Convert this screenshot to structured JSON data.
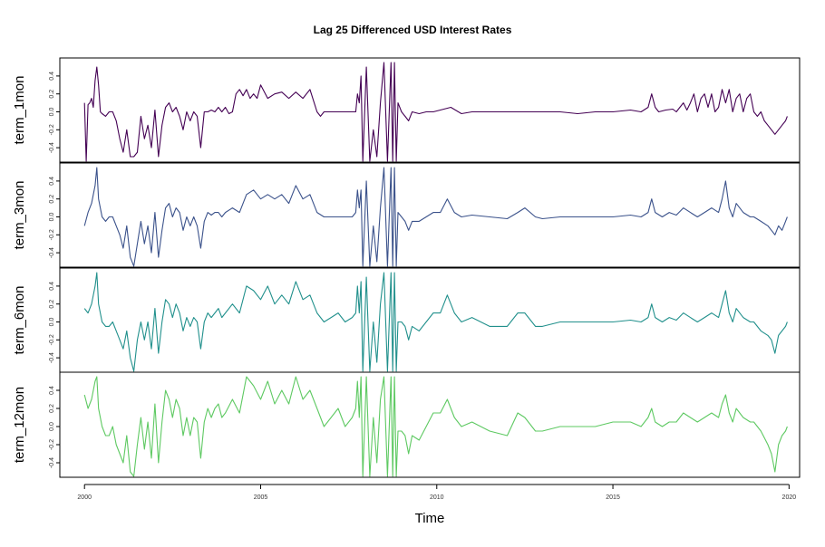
{
  "chart_data": {
    "type": "line",
    "title": "Lag 25 Differenced USD Interest Rates",
    "xlabel": "Time",
    "x_ticks": [
      "2000",
      "2005",
      "2010",
      "2015",
      "2020"
    ],
    "y_ticks": [
      "-0.4",
      "-0.2",
      "0.0",
      "0.2",
      "0.4"
    ],
    "xlim": [
      2000,
      2020
    ],
    "ylim": [
      -0.5,
      0.5
    ],
    "grid": false,
    "legend": "none",
    "series": [
      {
        "name": "term_1mon",
        "color": "#440154",
        "x": [
          2000.0,
          2000.05,
          2000.1,
          2000.15,
          2000.2,
          2000.25,
          2000.3,
          2000.35,
          2000.4,
          2000.45,
          2000.5,
          2000.6,
          2000.7,
          2000.8,
          2000.9,
          2001.0,
          2001.1,
          2001.2,
          2001.3,
          2001.4,
          2001.5,
          2001.6,
          2001.7,
          2001.8,
          2001.9,
          2002.0,
          2002.1,
          2002.2,
          2002.3,
          2002.4,
          2002.5,
          2002.6,
          2002.7,
          2002.8,
          2002.9,
          2003.0,
          2003.1,
          2003.2,
          2003.3,
          2003.4,
          2003.5,
          2003.6,
          2003.7,
          2003.8,
          2003.9,
          2004.0,
          2004.1,
          2004.2,
          2004.3,
          2004.4,
          2004.5,
          2004.6,
          2004.7,
          2004.8,
          2004.9,
          2005.0,
          2005.2,
          2005.4,
          2005.6,
          2005.8,
          2006.0,
          2006.2,
          2006.4,
          2006.6,
          2006.7,
          2006.8,
          2006.9,
          2007.0,
          2007.2,
          2007.4,
          2007.6,
          2007.7,
          2007.75,
          2007.8,
          2007.85,
          2007.9,
          2008.0,
          2008.1,
          2008.2,
          2008.3,
          2008.4,
          2008.5,
          2008.6,
          2008.7,
          2008.75,
          2008.8,
          2008.85,
          2008.9,
          2009.0,
          2009.1,
          2009.2,
          2009.3,
          2009.5,
          2009.7,
          2009.9,
          2010.1,
          2010.4,
          2010.7,
          2011.0,
          2011.5,
          2012.0,
          2012.5,
          2013.0,
          2013.5,
          2014.0,
          2014.5,
          2015.0,
          2015.5,
          2015.8,
          2016.0,
          2016.1,
          2016.2,
          2016.3,
          2016.5,
          2016.7,
          2016.8,
          2016.9,
          2017.0,
          2017.1,
          2017.2,
          2017.3,
          2017.4,
          2017.5,
          2017.6,
          2017.7,
          2017.8,
          2017.9,
          2018.0,
          2018.1,
          2018.2,
          2018.3,
          2018.4,
          2018.5,
          2018.6,
          2018.7,
          2018.8,
          2018.9,
          2019.0,
          2019.1,
          2019.2,
          2019.3,
          2019.4,
          2019.5,
          2019.6,
          2019.7,
          2019.8,
          2019.9,
          2019.95
        ],
        "values": [
          0.1,
          -0.55,
          0.08,
          0.1,
          0.15,
          0.05,
          0.35,
          0.5,
          0.3,
          0.0,
          -0.02,
          -0.05,
          0.0,
          0.0,
          -0.1,
          -0.3,
          -0.45,
          -0.2,
          -0.5,
          -0.5,
          -0.45,
          -0.05,
          -0.3,
          -0.15,
          -0.4,
          0.02,
          -0.5,
          -0.15,
          0.05,
          0.1,
          0.0,
          0.05,
          -0.05,
          -0.2,
          0.0,
          -0.1,
          0.0,
          -0.05,
          -0.4,
          0.0,
          0.0,
          0.02,
          0.0,
          0.05,
          0.0,
          0.05,
          -0.02,
          0.0,
          0.2,
          0.25,
          0.18,
          0.25,
          0.15,
          0.2,
          0.15,
          0.3,
          0.15,
          0.2,
          0.22,
          0.15,
          0.22,
          0.15,
          0.25,
          0.0,
          -0.05,
          0.0,
          0.0,
          0.0,
          0.0,
          0.0,
          0.0,
          0.0,
          0.2,
          0.1,
          0.4,
          -0.55,
          0.5,
          -0.55,
          -0.2,
          -0.5,
          0.1,
          0.55,
          -0.55,
          0.55,
          -0.55,
          0.55,
          -0.55,
          0.1,
          0.0,
          -0.05,
          -0.1,
          0.0,
          -0.02,
          0.0,
          0.0,
          0.02,
          0.05,
          -0.02,
          0.0,
          0.0,
          0.0,
          0.0,
          0.0,
          0.0,
          -0.02,
          0.0,
          0.0,
          0.02,
          0.0,
          0.05,
          0.2,
          0.05,
          0.0,
          0.02,
          0.03,
          0.0,
          0.05,
          0.1,
          0.02,
          0.1,
          0.2,
          0.0,
          0.15,
          0.2,
          0.05,
          0.2,
          0.0,
          0.05,
          0.25,
          0.1,
          0.25,
          0.0,
          0.15,
          0.2,
          0.0,
          0.15,
          0.2,
          0.0,
          -0.05,
          0.0,
          -0.1,
          -0.15,
          -0.2,
          -0.25,
          -0.2,
          -0.15,
          -0.1,
          -0.05
        ]
      },
      {
        "name": "term_3mon",
        "color": "#3b528b",
        "x": [
          2000.0,
          2000.1,
          2000.2,
          2000.3,
          2000.35,
          2000.4,
          2000.5,
          2000.6,
          2000.7,
          2000.8,
          2000.9,
          2001.0,
          2001.1,
          2001.2,
          2001.3,
          2001.4,
          2001.5,
          2001.6,
          2001.7,
          2001.8,
          2001.9,
          2002.0,
          2002.1,
          2002.2,
          2002.3,
          2002.4,
          2002.5,
          2002.6,
          2002.7,
          2002.8,
          2002.9,
          2003.0,
          2003.1,
          2003.2,
          2003.3,
          2003.4,
          2003.5,
          2003.6,
          2003.7,
          2003.8,
          2003.9,
          2004.0,
          2004.2,
          2004.4,
          2004.6,
          2004.8,
          2005.0,
          2005.2,
          2005.4,
          2005.6,
          2005.8,
          2006.0,
          2006.2,
          2006.4,
          2006.6,
          2006.8,
          2007.0,
          2007.2,
          2007.4,
          2007.6,
          2007.7,
          2007.75,
          2007.8,
          2007.85,
          2007.9,
          2008.0,
          2008.1,
          2008.2,
          2008.3,
          2008.4,
          2008.5,
          2008.6,
          2008.7,
          2008.75,
          2008.8,
          2008.85,
          2008.9,
          2009.0,
          2009.1,
          2009.2,
          2009.3,
          2009.5,
          2009.7,
          2009.9,
          2010.1,
          2010.3,
          2010.5,
          2010.7,
          2011.0,
          2011.5,
          2012.0,
          2012.3,
          2012.5,
          2012.8,
          2013.0,
          2013.5,
          2014.0,
          2014.5,
          2015.0,
          2015.5,
          2015.8,
          2016.0,
          2016.1,
          2016.2,
          2016.4,
          2016.6,
          2016.8,
          2017.0,
          2017.2,
          2017.4,
          2017.6,
          2017.8,
          2018.0,
          2018.1,
          2018.2,
          2018.3,
          2018.4,
          2018.5,
          2018.7,
          2018.9,
          2019.0,
          2019.2,
          2019.4,
          2019.5,
          2019.6,
          2019.7,
          2019.8,
          2019.9,
          2019.95
        ],
        "values": [
          -0.1,
          0.05,
          0.15,
          0.35,
          0.55,
          0.2,
          0.0,
          -0.05,
          0.0,
          0.0,
          -0.1,
          -0.2,
          -0.35,
          -0.1,
          -0.45,
          -0.55,
          -0.3,
          -0.05,
          -0.3,
          -0.1,
          -0.4,
          0.05,
          -0.45,
          -0.15,
          0.1,
          0.15,
          0.0,
          0.1,
          0.05,
          -0.15,
          0.0,
          -0.1,
          0.0,
          -0.1,
          -0.35,
          -0.05,
          0.05,
          0.02,
          0.05,
          0.05,
          0.0,
          0.05,
          0.1,
          0.05,
          0.25,
          0.3,
          0.2,
          0.25,
          0.2,
          0.25,
          0.15,
          0.35,
          0.2,
          0.25,
          0.05,
          0.0,
          0.0,
          0.0,
          0.0,
          0.0,
          0.05,
          0.3,
          0.1,
          0.3,
          -0.55,
          0.4,
          -0.55,
          -0.1,
          -0.5,
          0.1,
          0.55,
          -0.55,
          0.55,
          -0.55,
          0.55,
          -0.55,
          0.05,
          0.0,
          -0.05,
          -0.15,
          -0.05,
          -0.05,
          0.0,
          0.05,
          0.05,
          0.2,
          0.05,
          0.0,
          0.02,
          0.0,
          -0.02,
          0.05,
          0.1,
          0.0,
          -0.02,
          0.0,
          0.0,
          0.0,
          0.0,
          0.02,
          0.0,
          0.05,
          0.2,
          0.05,
          0.0,
          0.05,
          0.02,
          0.1,
          0.05,
          0.0,
          0.05,
          0.1,
          0.05,
          0.2,
          0.4,
          0.1,
          0.0,
          0.15,
          0.05,
          0.0,
          0.0,
          -0.05,
          -0.1,
          -0.15,
          -0.2,
          -0.1,
          -0.15,
          -0.05,
          0.0
        ]
      },
      {
        "name": "term_6mon",
        "color": "#21908c",
        "x": [
          2000.0,
          2000.1,
          2000.2,
          2000.3,
          2000.35,
          2000.4,
          2000.5,
          2000.6,
          2000.7,
          2000.8,
          2000.9,
          2001.0,
          2001.1,
          2001.2,
          2001.3,
          2001.4,
          2001.5,
          2001.6,
          2001.7,
          2001.8,
          2001.9,
          2002.0,
          2002.1,
          2002.2,
          2002.3,
          2002.4,
          2002.5,
          2002.6,
          2002.7,
          2002.8,
          2002.9,
          2003.0,
          2003.1,
          2003.2,
          2003.3,
          2003.4,
          2003.5,
          2003.6,
          2003.7,
          2003.8,
          2003.9,
          2004.0,
          2004.2,
          2004.4,
          2004.6,
          2004.8,
          2005.0,
          2005.2,
          2005.4,
          2005.6,
          2005.8,
          2006.0,
          2006.2,
          2006.4,
          2006.6,
          2006.8,
          2007.0,
          2007.2,
          2007.4,
          2007.6,
          2007.7,
          2007.75,
          2007.8,
          2007.85,
          2007.9,
          2008.0,
          2008.1,
          2008.2,
          2008.3,
          2008.4,
          2008.5,
          2008.6,
          2008.7,
          2008.75,
          2008.8,
          2008.85,
          2008.9,
          2009.0,
          2009.1,
          2009.2,
          2009.3,
          2009.5,
          2009.7,
          2009.9,
          2010.1,
          2010.3,
          2010.5,
          2010.7,
          2011.0,
          2011.5,
          2012.0,
          2012.3,
          2012.5,
          2012.8,
          2013.0,
          2013.5,
          2014.0,
          2014.5,
          2015.0,
          2015.5,
          2015.8,
          2016.0,
          2016.1,
          2016.2,
          2016.4,
          2016.6,
          2016.8,
          2017.0,
          2017.2,
          2017.4,
          2017.6,
          2017.8,
          2018.0,
          2018.1,
          2018.2,
          2018.3,
          2018.4,
          2018.5,
          2018.7,
          2018.9,
          2019.0,
          2019.2,
          2019.4,
          2019.5,
          2019.6,
          2019.7,
          2019.8,
          2019.9,
          2019.95
        ],
        "values": [
          0.15,
          0.1,
          0.2,
          0.4,
          0.55,
          0.2,
          0.0,
          -0.05,
          -0.05,
          0.0,
          -0.1,
          -0.2,
          -0.3,
          -0.1,
          -0.4,
          -0.55,
          -0.2,
          0.0,
          -0.2,
          0.0,
          -0.3,
          0.15,
          -0.35,
          0.0,
          0.25,
          0.2,
          0.05,
          0.2,
          0.1,
          -0.1,
          0.05,
          -0.05,
          0.05,
          0.0,
          -0.3,
          0.0,
          0.1,
          0.05,
          0.1,
          0.15,
          0.05,
          0.1,
          0.2,
          0.1,
          0.4,
          0.35,
          0.25,
          0.4,
          0.2,
          0.3,
          0.2,
          0.45,
          0.25,
          0.3,
          0.1,
          0.0,
          0.05,
          0.1,
          0.0,
          0.05,
          0.1,
          0.4,
          0.1,
          0.45,
          -0.55,
          0.5,
          -0.55,
          0.0,
          -0.45,
          0.2,
          0.55,
          -0.55,
          0.55,
          -0.55,
          0.55,
          -0.55,
          0.0,
          0.0,
          -0.05,
          -0.2,
          -0.05,
          -0.1,
          0.0,
          0.1,
          0.1,
          0.3,
          0.1,
          0.0,
          0.05,
          -0.05,
          -0.05,
          0.1,
          0.1,
          -0.05,
          -0.05,
          0.0,
          0.0,
          0.0,
          0.0,
          0.02,
          0.0,
          0.05,
          0.2,
          0.05,
          0.0,
          0.05,
          0.02,
          0.1,
          0.05,
          0.0,
          0.05,
          0.1,
          0.05,
          0.2,
          0.35,
          0.1,
          0.0,
          0.15,
          0.05,
          0.0,
          0.0,
          -0.1,
          -0.15,
          -0.2,
          -0.35,
          -0.15,
          -0.1,
          -0.05,
          0.0
        ]
      },
      {
        "name": "term_12mon",
        "color": "#5ec962",
        "x": [
          2000.0,
          2000.1,
          2000.2,
          2000.3,
          2000.35,
          2000.4,
          2000.5,
          2000.6,
          2000.7,
          2000.8,
          2000.9,
          2001.0,
          2001.1,
          2001.2,
          2001.3,
          2001.4,
          2001.5,
          2001.6,
          2001.7,
          2001.8,
          2001.9,
          2002.0,
          2002.1,
          2002.2,
          2002.3,
          2002.4,
          2002.5,
          2002.6,
          2002.7,
          2002.8,
          2002.9,
          2003.0,
          2003.1,
          2003.2,
          2003.3,
          2003.4,
          2003.5,
          2003.6,
          2003.7,
          2003.8,
          2003.9,
          2004.0,
          2004.2,
          2004.4,
          2004.6,
          2004.8,
          2005.0,
          2005.2,
          2005.4,
          2005.6,
          2005.8,
          2006.0,
          2006.2,
          2006.4,
          2006.6,
          2006.8,
          2007.0,
          2007.2,
          2007.4,
          2007.6,
          2007.7,
          2007.75,
          2007.8,
          2007.85,
          2007.9,
          2008.0,
          2008.1,
          2008.2,
          2008.3,
          2008.4,
          2008.5,
          2008.6,
          2008.7,
          2008.75,
          2008.8,
          2008.85,
          2008.9,
          2009.0,
          2009.1,
          2009.2,
          2009.3,
          2009.5,
          2009.7,
          2009.9,
          2010.1,
          2010.3,
          2010.5,
          2010.7,
          2011.0,
          2011.5,
          2012.0,
          2012.3,
          2012.5,
          2012.8,
          2013.0,
          2013.5,
          2014.0,
          2014.5,
          2015.0,
          2015.5,
          2015.8,
          2016.0,
          2016.1,
          2016.2,
          2016.4,
          2016.6,
          2016.8,
          2017.0,
          2017.2,
          2017.4,
          2017.6,
          2017.8,
          2018.0,
          2018.1,
          2018.2,
          2018.3,
          2018.4,
          2018.5,
          2018.7,
          2018.9,
          2019.0,
          2019.2,
          2019.4,
          2019.5,
          2019.6,
          2019.7,
          2019.8,
          2019.9,
          2019.95
        ],
        "values": [
          0.35,
          0.2,
          0.3,
          0.5,
          0.55,
          0.2,
          0.0,
          -0.1,
          -0.1,
          0.0,
          -0.2,
          -0.3,
          -0.4,
          -0.1,
          -0.5,
          -0.55,
          -0.2,
          0.1,
          -0.25,
          0.05,
          -0.35,
          0.25,
          -0.4,
          0.05,
          0.4,
          0.3,
          0.1,
          0.3,
          0.2,
          -0.1,
          0.1,
          -0.1,
          0.1,
          0.05,
          -0.35,
          0.05,
          0.2,
          0.1,
          0.2,
          0.25,
          0.1,
          0.15,
          0.3,
          0.15,
          0.55,
          0.45,
          0.3,
          0.5,
          0.25,
          0.4,
          0.25,
          0.55,
          0.3,
          0.4,
          0.2,
          0.0,
          0.1,
          0.2,
          0.0,
          0.1,
          0.2,
          0.5,
          0.1,
          0.55,
          -0.55,
          0.55,
          -0.55,
          0.1,
          -0.4,
          0.3,
          0.55,
          -0.55,
          0.55,
          -0.55,
          0.55,
          -0.55,
          -0.05,
          -0.05,
          -0.1,
          -0.3,
          -0.1,
          -0.15,
          0.0,
          0.15,
          0.15,
          0.3,
          0.1,
          0.0,
          0.05,
          -0.05,
          -0.1,
          0.15,
          0.1,
          -0.05,
          -0.05,
          0.0,
          0.0,
          0.0,
          0.05,
          0.05,
          0.0,
          0.1,
          0.2,
          0.05,
          0.0,
          0.05,
          0.05,
          0.15,
          0.1,
          0.05,
          0.1,
          0.15,
          0.1,
          0.25,
          0.35,
          0.15,
          0.05,
          0.2,
          0.1,
          0.05,
          0.05,
          -0.05,
          -0.2,
          -0.3,
          -0.5,
          -0.2,
          -0.1,
          -0.05,
          0.0
        ]
      }
    ]
  }
}
